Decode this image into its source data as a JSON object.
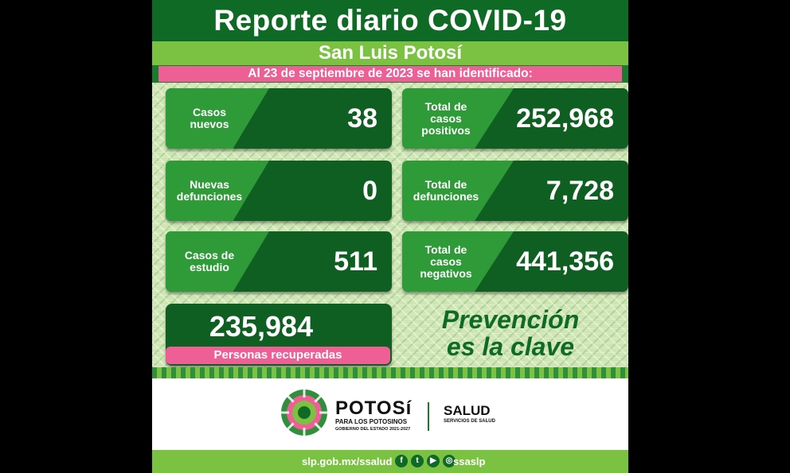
{
  "title": "Reporte diario COVID-19",
  "subtitle": "San Luis Potosí",
  "date_line": "Al 23 de septiembre de 2023 se han identificado:",
  "cards": [
    {
      "label": "Casos nuevos",
      "value": "38"
    },
    {
      "label": "Total de casos positivos",
      "value": "252,968"
    },
    {
      "label": "Nuevas defunciones",
      "value": "0"
    },
    {
      "label": "Total de defunciones",
      "value": "7,728"
    },
    {
      "label": "Casos de estudio",
      "value": "511"
    },
    {
      "label": "Total de casos negativos",
      "value": "441,356"
    }
  ],
  "recovered": {
    "value": "235,984",
    "label": "Personas recuperadas"
  },
  "slogan": {
    "line1": "Prevención",
    "line2": "es la clave"
  },
  "footer": {
    "brand_name": "POTOSí",
    "brand_sub": "PARA LOS POTOSINOS",
    "brand_tiny": "GOBIERNO DEL ESTADO 2021-2027",
    "salud_name": "SALUD",
    "salud_tiny": "SERVICIOS DE SALUD"
  },
  "bottom": {
    "url": "slp.gob.mx/ssalud",
    "handle": "ssaslp"
  },
  "colors": {
    "dark_green": "#0f6a25",
    "light_green": "#7cc242",
    "pink": "#ee5f95"
  }
}
